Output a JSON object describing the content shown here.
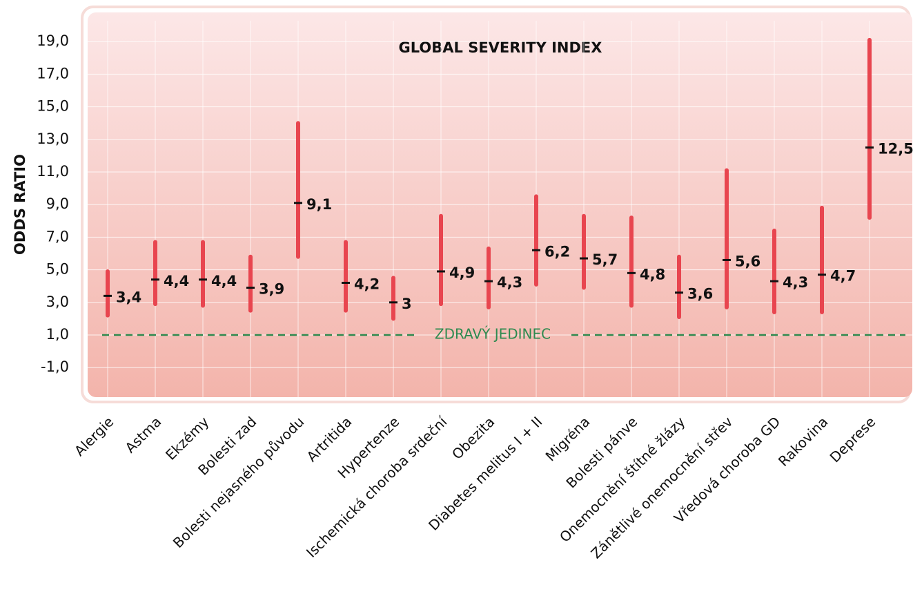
{
  "chart_data": {
    "type": "errorbar",
    "title": "GLOBAL SEVERITY INDEX",
    "ylabel": "ODDS RATIO",
    "categories": [
      "Alergie",
      "Astma",
      "Ekzémy",
      "Bolesti zad",
      "Bolesti nejasného původu",
      "Artritida",
      "Hypertenze",
      "Ischemická choroba srdeční",
      "Obezita",
      "Diabetes melitus I + II",
      "Migréna",
      "Bolesti pánve",
      "Onemocnění štítné žlázy",
      "Zánětlivé onemocnění střev",
      "Vředová choroba GD",
      "Rakovina",
      "Deprese"
    ],
    "values": [
      3.4,
      4.4,
      4.4,
      3.9,
      9.1,
      4.2,
      3,
      4.9,
      4.3,
      6.2,
      5.7,
      4.8,
      3.6,
      5.6,
      4.3,
      4.7,
      12.5
    ],
    "value_labels": [
      "3,4",
      "4,4",
      "4,4",
      "3,9",
      "9,1",
      "4,2",
      "3",
      "4,9",
      "4,3",
      "6,2",
      "5,7",
      "4,8",
      "3,6",
      "5,6",
      "4,3",
      "4,7",
      "12,5"
    ],
    "ci_low": [
      2.2,
      2.9,
      2.8,
      2.5,
      5.8,
      2.5,
      2.0,
      2.9,
      2.7,
      4.1,
      3.9,
      2.8,
      2.1,
      2.7,
      2.4,
      2.4,
      8.2
    ],
    "ci_high": [
      4.9,
      6.7,
      6.7,
      5.8,
      14.0,
      6.7,
      4.5,
      8.3,
      6.3,
      9.5,
      8.3,
      8.2,
      5.8,
      11.1,
      7.4,
      8.8,
      19.1
    ],
    "color": "#e8454f",
    "point_color": "#111111",
    "reference": {
      "value": 1,
      "label": "ZDRAVÝ JEDINEC",
      "color": "#2e8a4f"
    },
    "ylim": [
      -2.3,
      20.2
    ],
    "yticks": [
      {
        "value": -1,
        "label": "-1,0"
      },
      {
        "value": 1,
        "label": "1,0"
      },
      {
        "value": 3,
        "label": "3,0"
      },
      {
        "value": 5,
        "label": "5,0"
      },
      {
        "value": 7,
        "label": "7,0"
      },
      {
        "value": 9,
        "label": "9,0"
      },
      {
        "value": 11,
        "label": "11,0"
      },
      {
        "value": 13,
        "label": "13,0"
      },
      {
        "value": 15,
        "label": "15,0"
      },
      {
        "value": 17,
        "label": "17,0"
      },
      {
        "value": 19,
        "label": "19,0"
      }
    ],
    "grid": true
  }
}
